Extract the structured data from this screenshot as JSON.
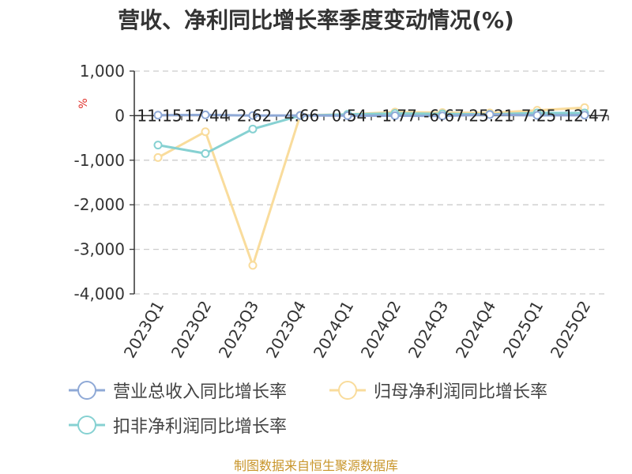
{
  "title": "营收、净利同比增长率季度变动情况(%)",
  "source": "制图数据来自恒生聚源数据库",
  "colors": {
    "revenue": "#8fa9d6",
    "net_profit": "#f9dc9c",
    "deducted_profit": "#86d1d2",
    "axis": "#333333",
    "grid": "#cccccc",
    "unit": "#e0302a"
  },
  "chart_data": {
    "type": "line",
    "title": "营收、净利同比增长率季度变动情况(%)",
    "ylabel": "%",
    "xlabel": "",
    "ylim": [
      -4000,
      1000
    ],
    "yticks": [
      1000,
      0,
      -1000,
      -2000,
      -3000,
      -4000
    ],
    "ytick_labels": [
      "1,000",
      "0",
      "-1,000",
      "-2,000",
      "-3,000",
      "-4,000"
    ],
    "grid": true,
    "legend_position": "bottom",
    "categories": [
      "2023Q1",
      "2023Q2",
      "2023Q3",
      "2023Q4",
      "2024Q1",
      "2024Q2",
      "2024Q3",
      "2024Q4",
      "2025Q1",
      "2025Q2"
    ],
    "series": [
      {
        "name": "营业总收入同比增长率",
        "color": "#8fa9d6",
        "values": [
          11.15,
          17.44,
          2.62,
          4.66,
          0.54,
          -1.77,
          -6.67,
          25.21,
          7.25,
          12.47
        ],
        "labels": [
          "11.15",
          "17.44",
          "2.62",
          "4.66",
          "0.54",
          "-1.77",
          "-6.67",
          "25.21",
          "7.25",
          "12.47"
        ]
      },
      {
        "name": "归母净利润同比增长率",
        "color": "#f9dc9c",
        "values": [
          -940,
          -360,
          -3360,
          10,
          30,
          80,
          70,
          60,
          120,
          180
        ]
      },
      {
        "name": "扣非净利润同比增长率",
        "color": "#86d1d2",
        "values": [
          -660,
          -850,
          -300,
          0,
          30,
          50,
          40,
          30,
          60,
          60
        ]
      }
    ]
  }
}
